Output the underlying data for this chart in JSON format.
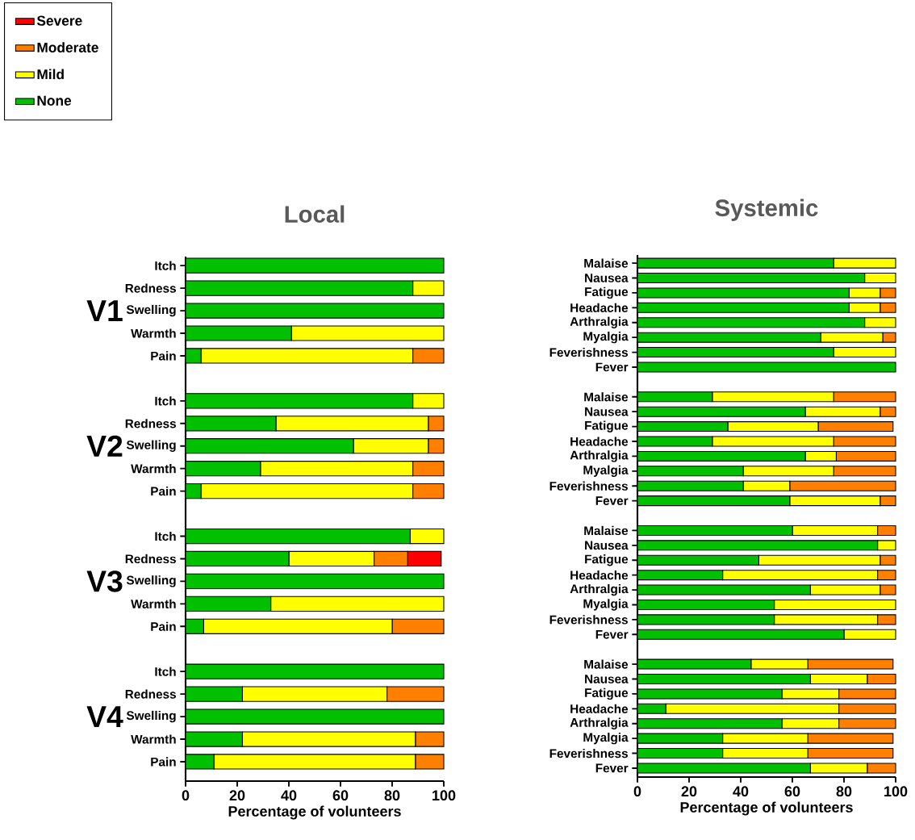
{
  "chart_data": [
    {
      "type": "bar",
      "orientation": "horizontal",
      "stacked": true,
      "title": "Local",
      "xlabel": "Percentage of volunteers",
      "categories": [
        "Itch",
        "Redness",
        "Swelling",
        "Warmth",
        "Pain",
        null,
        "Itch",
        "Redness",
        "Swelling",
        "Warmth",
        "Pain",
        null,
        "Itch",
        "Redness",
        "Swelling",
        "Warmth",
        "Pain",
        null,
        "Itch",
        "Redness",
        "Swelling",
        "Warmth",
        "Pain"
      ],
      "series": [
        {
          "name": "None",
          "color": "#00c000",
          "values": [
            100,
            88,
            100,
            41,
            6,
            null,
            88,
            35,
            65,
            29,
            6,
            null,
            87,
            40,
            100,
            33,
            7,
            null,
            100,
            22,
            100,
            22,
            11
          ]
        },
        {
          "name": "Mild",
          "color": "#ffff00",
          "values": [
            0,
            12,
            0,
            59,
            82,
            null,
            12,
            59,
            29,
            59,
            82,
            null,
            13,
            33,
            0,
            67,
            73,
            null,
            0,
            56,
            0,
            67,
            78
          ]
        },
        {
          "name": "Moderate",
          "color": "#ff8000",
          "values": [
            0,
            0,
            0,
            0,
            12,
            null,
            0,
            6,
            6,
            12,
            12,
            null,
            0,
            13,
            0,
            0,
            20,
            null,
            0,
            22,
            0,
            11,
            11
          ]
        },
        {
          "name": "Severe",
          "color": "#ff0000",
          "values": [
            0,
            0,
            0,
            0,
            0,
            null,
            0,
            0,
            0,
            0,
            0,
            null,
            0,
            13,
            0,
            0,
            0,
            null,
            0,
            0,
            0,
            0,
            0
          ]
        }
      ],
      "xlim": [
        0,
        100
      ],
      "xticks": [
        0,
        20,
        40,
        60,
        80,
        100
      ],
      "legend": "top left",
      "grid": false,
      "annotations": [
        "V1",
        "V2",
        "V3",
        "V4"
      ]
    },
    {
      "type": "bar",
      "orientation": "horizontal",
      "stacked": true,
      "title": "Systemic",
      "xlabel": "Percentage of volunteers",
      "categories": [
        "Malaise",
        "Nausea",
        "Fatigue",
        "Headache",
        "Arthralgia",
        "Myalgia",
        "Feverishness",
        "Fever",
        null,
        "Malaise",
        "Nausea",
        "Fatigue",
        "Headache",
        "Arthralgia",
        "Myalgia",
        "Feverishness",
        "Fever",
        null,
        "Malaise",
        "Nausea",
        "Fatigue",
        "Headache",
        "Arthralgia",
        "Myalgia",
        "Feverishness",
        "Fever",
        null,
        "Malaise",
        "Nausea",
        "Fatigue",
        "Headache",
        "Arthralgia",
        "Myalgia",
        "Feverishness",
        "Fever"
      ],
      "series": [
        {
          "color": "#00c000",
          "values": [
            76,
            88,
            82,
            82,
            88,
            71,
            76,
            100,
            null,
            29,
            65,
            35,
            29,
            65,
            41,
            41,
            59,
            null,
            60,
            93,
            47,
            33,
            67,
            53,
            53,
            80,
            null,
            44,
            67,
            56,
            11,
            56,
            33,
            33,
            67
          ]
        },
        {
          "color": "#ffff00",
          "values": [
            24,
            12,
            12,
            12,
            12,
            24,
            24,
            0,
            null,
            47,
            29,
            35,
            47,
            12,
            35,
            18,
            35,
            null,
            33,
            7,
            47,
            60,
            27,
            47,
            40,
            20,
            null,
            22,
            22,
            22,
            67,
            22,
            33,
            33,
            22
          ]
        },
        {
          "color": "#ff8000",
          "values": [
            0,
            0,
            6,
            6,
            0,
            5,
            0,
            0,
            null,
            24,
            6,
            29,
            24,
            23,
            24,
            41,
            6,
            null,
            7,
            0,
            6,
            7,
            6,
            0,
            7,
            0,
            null,
            33,
            11,
            22,
            22,
            22,
            33,
            33,
            11
          ]
        }
      ],
      "xlim": [
        0,
        100
      ],
      "xticks": [
        0,
        20,
        40,
        60,
        80,
        100
      ],
      "legend": false,
      "grid": false
    }
  ]
}
